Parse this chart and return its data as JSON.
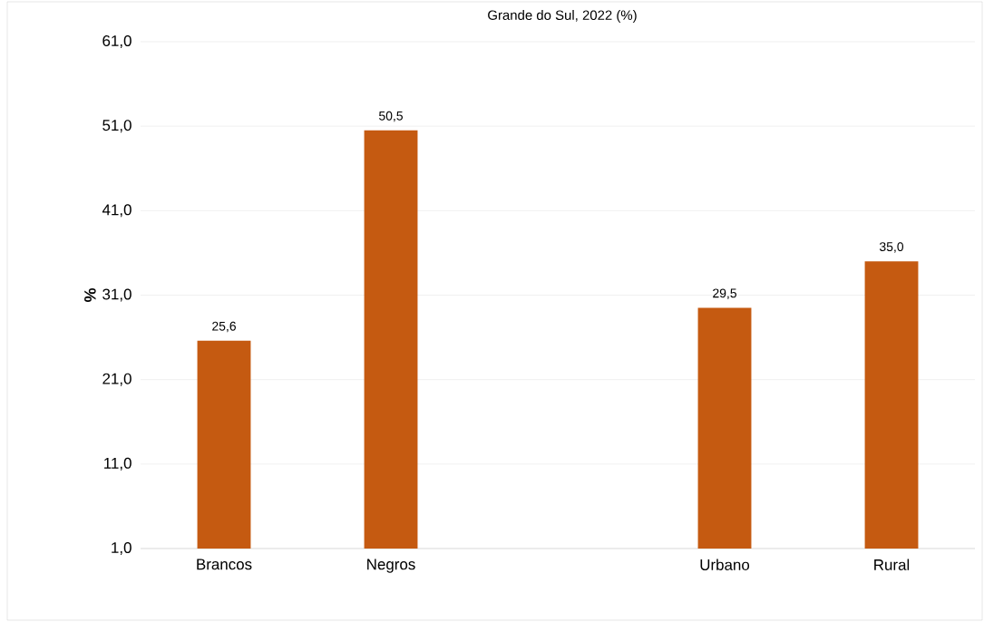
{
  "chart_data": {
    "type": "bar",
    "title": "Grande do Sul, 2022 (%)",
    "ylabel": "%",
    "categories": [
      "Brancos",
      "Negros",
      null,
      "Urbano",
      "Rural"
    ],
    "values": [
      25.6,
      50.5,
      null,
      29.5,
      35.0
    ],
    "value_labels": [
      "25,6",
      "50,5",
      null,
      "29,5",
      "35,0"
    ],
    "color": "#c55a11",
    "ylim": [
      1,
      61
    ],
    "yticks": [
      {
        "value": 1,
        "label": "1,0"
      },
      {
        "value": 11,
        "label": "11,0"
      },
      {
        "value": 21,
        "label": "21,0"
      },
      {
        "value": 31,
        "label": "31,0"
      },
      {
        "value": 41,
        "label": "41,0"
      },
      {
        "value": 51,
        "label": "51,0"
      },
      {
        "value": 61,
        "label": "61,0"
      }
    ],
    "grid": "y"
  }
}
